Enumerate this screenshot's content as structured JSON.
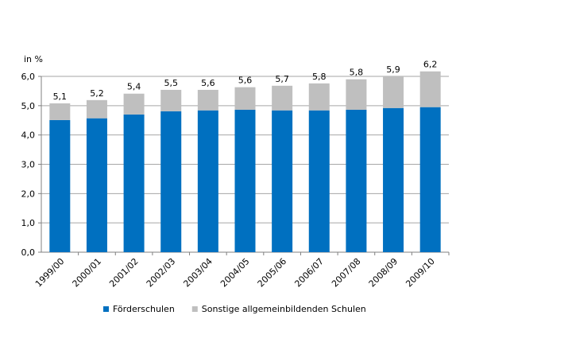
{
  "chart_data": {
    "type": "stacked_bar",
    "y_axis_label": "in %",
    "categories": [
      "1999/00",
      "2000/01",
      "2001/02",
      "2002/03",
      "2003/04",
      "2004/05",
      "2005/06",
      "2006/07",
      "2007/08",
      "2008/09",
      "2009/10"
    ],
    "series": [
      {
        "name": "Förderschulen",
        "color": "#0070c0",
        "values": [
          4.51,
          4.57,
          4.7,
          4.81,
          4.84,
          4.86,
          4.84,
          4.84,
          4.86,
          4.92,
          4.95
        ]
      },
      {
        "name": "Sonstige allgemeinbildenden Schulen",
        "color": "#bfbfbf",
        "values": [
          0.57,
          0.62,
          0.71,
          0.73,
          0.7,
          0.77,
          0.84,
          0.92,
          1.04,
          1.08,
          1.22
        ]
      }
    ],
    "totals": {
      "values": [
        5.1,
        5.2,
        5.4,
        5.5,
        5.6,
        5.6,
        5.7,
        5.8,
        5.8,
        5.9,
        6.2
      ],
      "value_labels": [
        "5,1",
        "5,2",
        "5,4",
        "5,5",
        "5,6",
        "5,6",
        "5,7",
        "5,8",
        "5,8",
        "5,9",
        "6,2"
      ]
    },
    "ylim": [
      0,
      6
    ],
    "yticks": [
      {
        "value": 0,
        "label": "0,0"
      },
      {
        "value": 1,
        "label": "1,0"
      },
      {
        "value": 2,
        "label": "2,0"
      },
      {
        "value": 3,
        "label": "3,0"
      },
      {
        "value": 4,
        "label": "4,0"
      },
      {
        "value": 5,
        "label": "5,0"
      },
      {
        "value": 6,
        "label": "6,0"
      }
    ],
    "grid": true,
    "legend": "bottom"
  }
}
